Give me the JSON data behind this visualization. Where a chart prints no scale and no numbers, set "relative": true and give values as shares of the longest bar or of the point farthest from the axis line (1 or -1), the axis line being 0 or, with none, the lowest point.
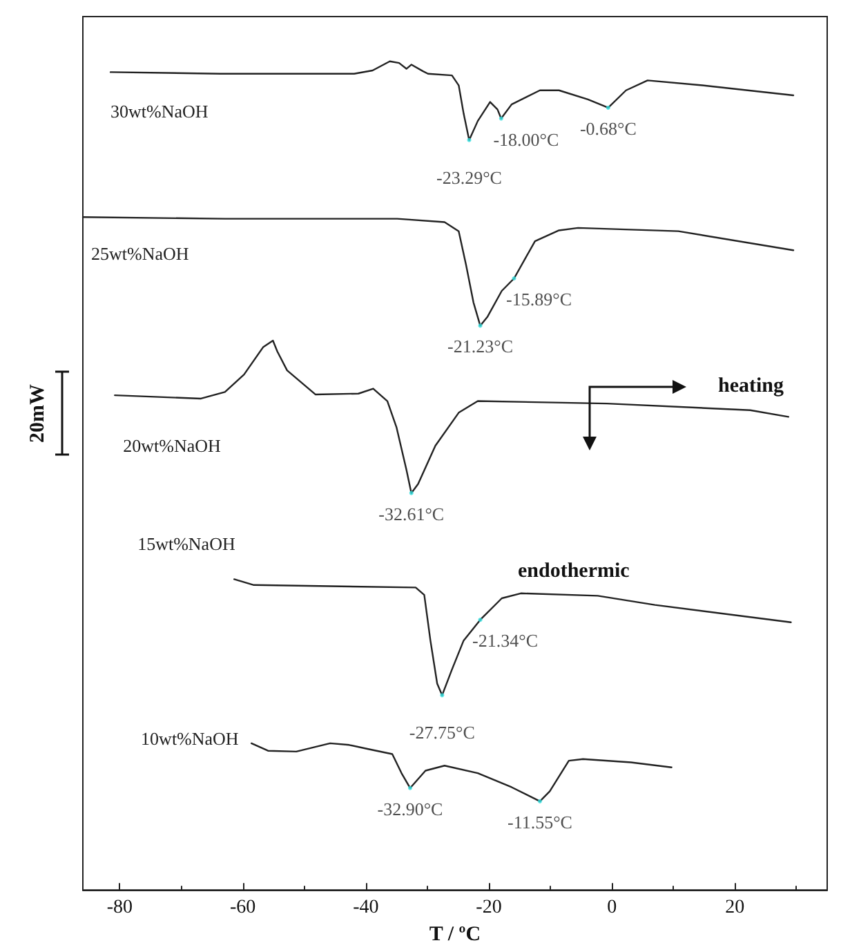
{
  "chart_data": {
    "type": "line",
    "relative": true,
    "xlabel": "T / ºC",
    "ylabel": "20mW",
    "marker": "none",
    "line_style": "solid",
    "xlim": [
      -86,
      35
    ],
    "xticks": [
      -80,
      -60,
      -40,
      -20,
      0,
      20
    ],
    "series": [
      {
        "name": "30wt%NaOH",
        "color": "#222222",
        "x": [
          -81.5,
          -63.7,
          -41.9,
          -38.9,
          -36.1,
          -34.6,
          -33.4,
          -32.6,
          -30.7,
          -29.9,
          -26.0,
          -24.9,
          -24.1,
          -23.2,
          -21.8,
          -19.8,
          -18.6,
          -18.0,
          -16.3,
          -11.7,
          -8.6,
          -3.9,
          -0.6,
          2.3,
          5.8,
          14.7,
          29.5
        ],
        "values": [
          0.987,
          0.985,
          0.985,
          0.989,
          1.0,
          0.998,
          0.991,
          0.996,
          0.988,
          0.985,
          0.983,
          0.971,
          0.937,
          0.905,
          0.928,
          0.951,
          0.942,
          0.931,
          0.948,
          0.965,
          0.965,
          0.954,
          0.944,
          0.965,
          0.977,
          0.971,
          0.959
        ]
      },
      {
        "name": "25wt%NaOH",
        "color": "#222222",
        "x": [
          -86,
          -62.9,
          -34.9,
          -27.2,
          -24.9,
          -23.7,
          -22.5,
          -21.4,
          -20.2,
          -17.9,
          -15.9,
          -12.5,
          -8.6,
          -5.5,
          10.8,
          29.5
        ],
        "values": [
          0.812,
          0.81,
          0.81,
          0.806,
          0.795,
          0.754,
          0.709,
          0.681,
          0.692,
          0.723,
          0.738,
          0.783,
          0.796,
          0.799,
          0.795,
          0.772
        ]
      },
      {
        "name": "20wt%NaOH",
        "color": "#222222",
        "x": [
          -80.8,
          -66.8,
          -62.9,
          -59.8,
          -56.7,
          -55.1,
          -54.4,
          -52.8,
          -48.2,
          -41.2,
          -38.8,
          -36.5,
          -35.0,
          -33.4,
          -32.6,
          -31.5,
          -28.7,
          -24.9,
          -21.8,
          -0.8,
          22.5,
          28.7
        ],
        "values": [
          0.597,
          0.593,
          0.601,
          0.622,
          0.655,
          0.663,
          0.65,
          0.627,
          0.598,
          0.599,
          0.605,
          0.59,
          0.558,
          0.507,
          0.479,
          0.49,
          0.536,
          0.576,
          0.59,
          0.587,
          0.579,
          0.571
        ]
      },
      {
        "name": "15wt%NaOH",
        "color": "#222222",
        "x": [
          -61.4,
          -58.2,
          -31.9,
          -30.5,
          -29.5,
          -28.4,
          -27.6,
          -26.0,
          -24.1,
          -21.4,
          -17.9,
          -14.8,
          -2.3,
          7.0,
          29.1
        ],
        "values": [
          0.375,
          0.368,
          0.365,
          0.356,
          0.301,
          0.249,
          0.235,
          0.266,
          0.301,
          0.326,
          0.352,
          0.358,
          0.355,
          0.344,
          0.323
        ]
      },
      {
        "name": "10wt%NaOH",
        "color": "#222222",
        "x": [
          -58.6,
          -55.9,
          -51.3,
          -45.8,
          -42.7,
          -39.6,
          -35.7,
          -34.2,
          -32.8,
          -30.3,
          -27.2,
          -21.8,
          -16.3,
          -11.7,
          -10.1,
          -7.0,
          -4.7,
          3.1,
          9.7
        ],
        "values": [
          0.177,
          0.168,
          0.167,
          0.177,
          0.175,
          0.17,
          0.164,
          0.141,
          0.123,
          0.144,
          0.15,
          0.141,
          0.124,
          0.107,
          0.119,
          0.156,
          0.158,
          0.154,
          0.148
        ]
      }
    ],
    "annotations": [
      {
        "text": "-23.29°C",
        "x": -23.2,
        "y": 0.905
      },
      {
        "text": "-18.00°C",
        "x": -18.0,
        "y": 0.931
      },
      {
        "text": "-0.68°C",
        "x": -0.6,
        "y": 0.944
      },
      {
        "text": "-21.23°C",
        "x": -21.4,
        "y": 0.681
      },
      {
        "text": "-15.89°C",
        "x": -15.9,
        "y": 0.738
      },
      {
        "text": "-32.61°C",
        "x": -32.6,
        "y": 0.479
      },
      {
        "text": "-27.75°C",
        "x": -27.6,
        "y": 0.235
      },
      {
        "text": "-21.34°C",
        "x": -21.4,
        "y": 0.326
      },
      {
        "text": "-32.90°C",
        "x": -32.8,
        "y": 0.123
      },
      {
        "text": "-11.55°C",
        "x": -11.7,
        "y": 0.107
      },
      "heating",
      "endothermic"
    ]
  }
}
